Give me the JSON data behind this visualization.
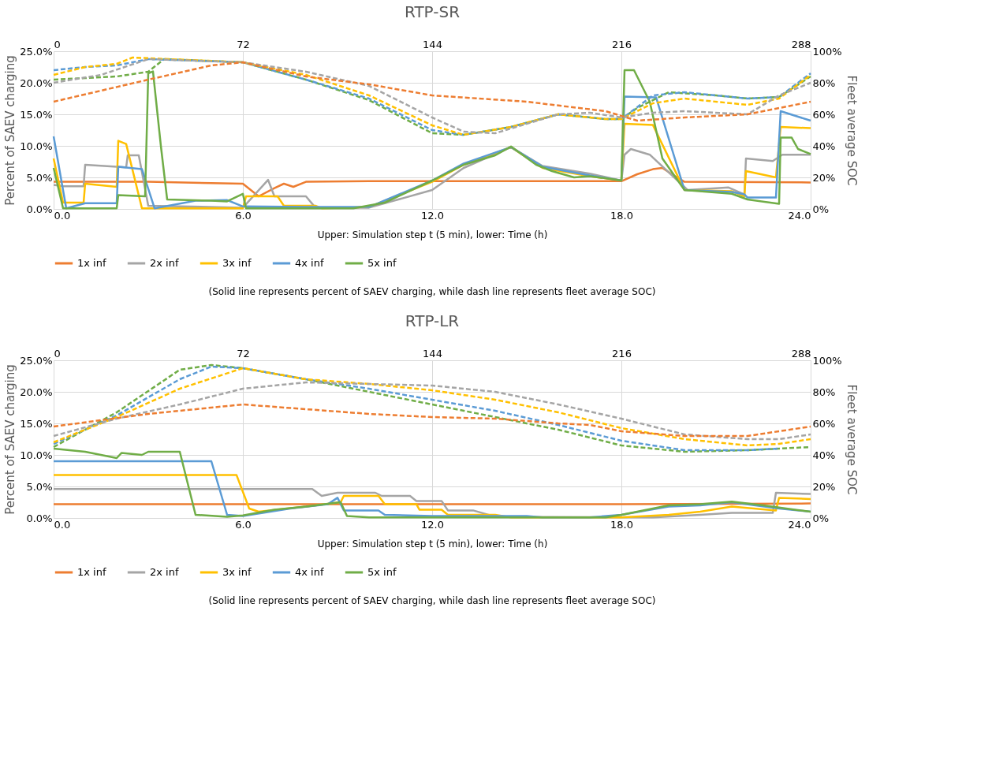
{
  "chart_data": [
    {
      "type": "line",
      "title": "RTP-SR",
      "xlabel": "Upper: Simulation step t (5 min), lower: Time (h)",
      "ylabel": "Percent of SAEV charging",
      "y2label": "Fleet average SOC",
      "annotations": [
        "(Solid line represents percent of SAEV charging, while dash line represents fleet average SOC)"
      ],
      "xlim": [
        0,
        24
      ],
      "xticks": [
        {
          "value": 0,
          "label": "0.0"
        },
        {
          "value": 6,
          "label": "6.0"
        },
        {
          "value": 12,
          "label": "12.0"
        },
        {
          "value": 18,
          "label": "18.0"
        },
        {
          "value": 24,
          "label": "24.0"
        }
      ],
      "x2lim": [
        0,
        288
      ],
      "x2ticks": [
        0,
        72,
        144,
        216,
        288
      ],
      "ylim": [
        0,
        25
      ],
      "yticks": [
        {
          "value": 0,
          "label": "0.0%"
        },
        {
          "value": 5,
          "label": "5.0%"
        },
        {
          "value": 10,
          "label": "10.0%"
        },
        {
          "value": 15,
          "label": "15.0%"
        },
        {
          "value": 20,
          "label": "20.0%"
        },
        {
          "value": 25,
          "label": "25.0%"
        }
      ],
      "y2lim": [
        0,
        100
      ],
      "y2ticks": [
        {
          "value": 0,
          "label": "0%"
        },
        {
          "value": 20,
          "label": "20%"
        },
        {
          "value": 40,
          "label": "40%"
        },
        {
          "value": 60,
          "label": "60%"
        },
        {
          "value": 80,
          "label": "80%"
        },
        {
          "value": 100,
          "label": "100%"
        }
      ],
      "grid": true,
      "legend": "bottom",
      "series": [
        {
          "name": "1x inf",
          "color": "#ed7d31",
          "line_style": "solid",
          "x": [
            0,
            3,
            6,
            6.5,
            7,
            7.3,
            7.6,
            8,
            10,
            18,
            18.5,
            19,
            19.3,
            19.6,
            20,
            24
          ],
          "values": [
            4.3,
            4.3,
            4.0,
            2.0,
            3.3,
            4.0,
            3.5,
            4.3,
            4.4,
            4.4,
            5.5,
            6.3,
            6.5,
            5.5,
            4.3,
            4.2
          ]
        },
        {
          "name": "2x inf",
          "color": "#a5a5a5",
          "line_style": "solid",
          "x": [
            0,
            0.3,
            0.95,
            1.0,
            2.3,
            2.35,
            2.7,
            3.0,
            6,
            6.8,
            7.0,
            8.0,
            8.3,
            10,
            12,
            13,
            14.5,
            15.5,
            17,
            18,
            18.1,
            18.3,
            18.9,
            20.1,
            21.4,
            21.9,
            21.95,
            22.8,
            23.1,
            24
          ],
          "values": [
            3.8,
            3.6,
            3.6,
            7.0,
            6.6,
            8.5,
            8.5,
            0.5,
            0.2,
            4.6,
            2.0,
            2.0,
            0.2,
            0.2,
            3.0,
            6.5,
            9.8,
            6.8,
            5.6,
            4.5,
            8.6,
            9.5,
            8.6,
            3.0,
            3.4,
            2.3,
            8.0,
            7.6,
            8.6,
            8.6
          ]
        },
        {
          "name": "3x inf",
          "color": "#ffc000",
          "line_style": "solid",
          "x": [
            0,
            0.3,
            0.95,
            1.0,
            2.0,
            2.05,
            2.3,
            2.8,
            6,
            6.1,
            7.1,
            7.3,
            8.3,
            8.5,
            10,
            12,
            13,
            14.5,
            15.5,
            17,
            18,
            18.1,
            19.0,
            20,
            21.5,
            21.9,
            21.95,
            22.9,
            23.05,
            24
          ],
          "values": [
            8.0,
            1.0,
            1.0,
            4.0,
            3.5,
            10.8,
            10.3,
            0.1,
            0.1,
            2.0,
            2.0,
            0.5,
            0.5,
            0.1,
            0.3,
            4.3,
            7.0,
            9.8,
            6.5,
            5.2,
            4.5,
            13.5,
            13.3,
            3.0,
            2.8,
            2.0,
            6.0,
            5.0,
            13.0,
            12.8
          ]
        },
        {
          "name": "4x inf",
          "color": "#5b9bd5",
          "line_style": "solid",
          "x": [
            0,
            0.4,
            1.0,
            2.0,
            2.05,
            2.8,
            3.2,
            4.5,
            5.5,
            6,
            8,
            10,
            12,
            13,
            14.5,
            15.5,
            17,
            18,
            18.1,
            19.1,
            20,
            21.5,
            21.9,
            22.0,
            22.9,
            23.05,
            24
          ],
          "values": [
            11.5,
            0.1,
            0.9,
            0.9,
            6.7,
            6.3,
            0.1,
            1.3,
            1.4,
            0.4,
            0.3,
            0.3,
            4.5,
            7.2,
            9.8,
            6.7,
            5.3,
            4.5,
            17.8,
            17.7,
            3.0,
            2.7,
            2.3,
            1.8,
            1.8,
            15.5,
            14.0
          ]
        },
        {
          "name": "5x inf",
          "color": "#70ad47",
          "line_style": "solid",
          "x": [
            0,
            0.3,
            2.0,
            2.05,
            2.9,
            3.0,
            3.15,
            3.4,
            3.6,
            5,
            5.5,
            6.0,
            6.1,
            9.5,
            10.5,
            12,
            13,
            14,
            14.5,
            15.3,
            15.8,
            16.5,
            17,
            18,
            18.1,
            18.4,
            18.9,
            19.3,
            20,
            21.5,
            22,
            23,
            23.05,
            23.4,
            23.6,
            24
          ],
          "values": [
            6.5,
            0.1,
            0.1,
            2.2,
            2.0,
            21.5,
            21.8,
            10.0,
            1.5,
            1.3,
            1.2,
            2.4,
            0.1,
            0.1,
            1.0,
            4.5,
            7.0,
            8.5,
            9.9,
            7.0,
            6.0,
            5.0,
            5.2,
            4.5,
            22.0,
            22.0,
            17.0,
            8.0,
            3.0,
            2.4,
            1.5,
            0.8,
            11.3,
            11.3,
            9.5,
            8.7
          ]
        },
        {
          "axis": "y2",
          "color": "#ed7d31",
          "line_style": "dashed",
          "x": [
            0,
            3,
            5,
            6,
            8,
            10,
            12,
            15,
            17.5,
            18.5,
            20,
            22,
            24
          ],
          "values": [
            68,
            82,
            91,
            93,
            84,
            79,
            72,
            68,
            62,
            56,
            58,
            60,
            68
          ]
        },
        {
          "axis": "y2",
          "color": "#a5a5a5",
          "line_style": "dashed",
          "x": [
            0,
            1.5,
            3,
            6,
            8,
            10,
            12,
            13,
            14,
            16,
            17,
            18,
            19,
            20,
            22,
            23,
            24
          ],
          "values": [
            80,
            85,
            95,
            93,
            87,
            78,
            58,
            49,
            48,
            60,
            61,
            58,
            61,
            62,
            60,
            72,
            80
          ]
        },
        {
          "axis": "y2",
          "color": "#ffc000",
          "line_style": "dashed",
          "x": [
            0,
            1,
            2,
            2.5,
            6,
            8,
            10,
            12,
            13,
            14.5,
            16,
            17.5,
            18,
            19,
            20,
            22,
            23,
            24
          ],
          "values": [
            85,
            90,
            92,
            96,
            93,
            85,
            72,
            53,
            47,
            52,
            60,
            57,
            57,
            67,
            70,
            66,
            70,
            85
          ]
        },
        {
          "axis": "y2",
          "color": "#5b9bd5",
          "line_style": "dashed",
          "x": [
            0,
            1,
            2,
            3,
            6,
            8,
            10,
            12,
            13,
            14.5,
            16,
            17.5,
            18,
            19,
            20,
            22,
            23,
            24
          ],
          "values": [
            88,
            90,
            91,
            95,
            93,
            82,
            70,
            50,
            47,
            52,
            60,
            57,
            57,
            72,
            74,
            70,
            71,
            86
          ]
        },
        {
          "axis": "y2",
          "color": "#70ad47",
          "line_style": "dashed",
          "x": [
            0,
            1,
            2,
            3,
            3.5,
            6,
            8,
            10,
            12,
            13,
            14.5,
            16,
            17.5,
            18,
            18.5,
            19.5,
            21,
            22,
            23,
            24
          ],
          "values": [
            82,
            83,
            84,
            87,
            95,
            93,
            82,
            69,
            48,
            47,
            52,
            60,
            57,
            57,
            64,
            74,
            72,
            70,
            71,
            84
          ]
        }
      ]
    },
    {
      "type": "line",
      "title": "RTP-LR",
      "xlabel": "Upper: Simulation step t (5 min), lower: Time (h)",
      "ylabel": "Percent of SAEV charging",
      "y2label": "Fleet average SOC",
      "annotations": [
        "(Solid line represents percent of SAEV charging, while dash line represents fleet average SOC)"
      ],
      "xlim": [
        0,
        24
      ],
      "xticks": [
        {
          "value": 0,
          "label": "0.0"
        },
        {
          "value": 6,
          "label": "6.0"
        },
        {
          "value": 12,
          "label": "12.0"
        },
        {
          "value": 18,
          "label": "18.0"
        },
        {
          "value": 24,
          "label": "24.0"
        }
      ],
      "x2lim": [
        0,
        288
      ],
      "x2ticks": [
        0,
        72,
        144,
        216,
        288
      ],
      "ylim": [
        0,
        25
      ],
      "yticks": [
        {
          "value": 0,
          "label": "0.0%"
        },
        {
          "value": 5,
          "label": "5.0%"
        },
        {
          "value": 10,
          "label": "10.0%"
        },
        {
          "value": 15,
          "label": "15.0%"
        },
        {
          "value": 20,
          "label": "20.0%"
        },
        {
          "value": 25,
          "label": "25.0%"
        }
      ],
      "y2lim": [
        0,
        100
      ],
      "y2ticks": [
        {
          "value": 0,
          "label": "0%"
        },
        {
          "value": 20,
          "label": "20%"
        },
        {
          "value": 40,
          "label": "40%"
        },
        {
          "value": 60,
          "label": "60%"
        },
        {
          "value": 80,
          "label": "80%"
        },
        {
          "value": 100,
          "label": "100%"
        }
      ],
      "grid": true,
      "legend": "bottom",
      "series": [
        {
          "name": "1x inf",
          "color": "#ed7d31",
          "line_style": "solid",
          "x": [
            0,
            6,
            12,
            18,
            24
          ],
          "values": [
            2.2,
            2.2,
            2.2,
            2.2,
            2.3
          ]
        },
        {
          "name": "2x inf",
          "color": "#a5a5a5",
          "line_style": "solid",
          "x": [
            0,
            8.2,
            8.5,
            9.0,
            10.2,
            10.4,
            11.3,
            11.5,
            12.3,
            12.5,
            13.3,
            14,
            19,
            20.5,
            21.5,
            22.8,
            22.9,
            24
          ],
          "values": [
            4.6,
            4.6,
            3.5,
            4.0,
            4.0,
            3.5,
            3.5,
            2.7,
            2.7,
            1.2,
            1.2,
            0.2,
            0.1,
            0.5,
            0.8,
            0.8,
            4.0,
            3.8
          ]
        },
        {
          "name": "3x inf",
          "color": "#ffc000",
          "line_style": "solid",
          "x": [
            0,
            5.8,
            6.2,
            6.5,
            8,
            9.1,
            9.2,
            10.3,
            10.5,
            11.5,
            11.6,
            12.3,
            12.5,
            14,
            14.5,
            18,
            19.5,
            20.5,
            21.5,
            22.9,
            23.0,
            24
          ],
          "values": [
            6.8,
            6.8,
            1.5,
            1.0,
            1.8,
            2.5,
            3.5,
            3.5,
            2.2,
            2.2,
            1.3,
            1.3,
            0.5,
            0.5,
            0.1,
            0.1,
            0.5,
            1.0,
            1.8,
            1.2,
            3.2,
            3.0
          ]
        },
        {
          "name": "4x inf",
          "color": "#5b9bd5",
          "line_style": "solid",
          "x": [
            0,
            5,
            5.5,
            6,
            7.5,
            8.7,
            9.0,
            9.2,
            10.3,
            10.5,
            12,
            15,
            15.5,
            17,
            18,
            19.5,
            20.5,
            21.5,
            23,
            24
          ],
          "values": [
            9.0,
            9.0,
            0.5,
            0.3,
            1.5,
            2.2,
            3.2,
            1.2,
            1.2,
            0.5,
            0.3,
            0.3,
            0.1,
            0.1,
            0.5,
            1.8,
            2.0,
            2.5,
            1.5,
            1.0
          ]
        },
        {
          "name": "5x inf",
          "color": "#70ad47",
          "line_style": "solid",
          "x": [
            0,
            1,
            2,
            2.15,
            2.8,
            3.0,
            4.0,
            4.5,
            5.5,
            6,
            7,
            8,
            9.1,
            9.3,
            10,
            17.5,
            18,
            19.5,
            20.5,
            21.5,
            22.5,
            23.5,
            24
          ],
          "values": [
            11.0,
            10.5,
            9.5,
            10.3,
            10.0,
            10.5,
            10.5,
            0.5,
            0.2,
            0.4,
            1.3,
            1.8,
            2.5,
            0.3,
            0.1,
            0.1,
            0.5,
            2.0,
            2.2,
            2.6,
            2.0,
            1.3,
            1.0
          ]
        },
        {
          "axis": "y2",
          "color": "#ed7d31",
          "line_style": "dashed",
          "x": [
            0,
            3,
            6,
            8,
            10,
            12,
            14,
            16,
            17,
            18,
            20,
            22,
            24
          ],
          "values": [
            58,
            66,
            72,
            69,
            66,
            64,
            63,
            60,
            59,
            55,
            52,
            52,
            58
          ]
        },
        {
          "axis": "y2",
          "color": "#a5a5a5",
          "line_style": "dashed",
          "x": [
            0,
            2,
            4,
            6,
            8,
            10,
            12,
            14,
            16,
            18,
            20,
            22,
            23,
            24
          ],
          "values": [
            52,
            63,
            72,
            82,
            86,
            85,
            84,
            80,
            72,
            63,
            53,
            50,
            50,
            53
          ]
        },
        {
          "axis": "y2",
          "color": "#ffc000",
          "line_style": "dashed",
          "x": [
            0,
            2,
            4,
            6,
            8,
            10,
            12,
            14,
            16,
            18,
            20,
            22,
            23,
            24
          ],
          "values": [
            48,
            64,
            82,
            95,
            88,
            85,
            81,
            75,
            67,
            57,
            50,
            46,
            47,
            50
          ]
        },
        {
          "axis": "y2",
          "color": "#5b9bd5",
          "line_style": "dashed",
          "x": [
            0,
            2,
            4,
            5,
            6,
            8,
            10,
            12,
            14,
            16,
            18,
            20,
            22,
            23
          ],
          "values": [
            47,
            65,
            88,
            96,
            95,
            88,
            82,
            75,
            68,
            59,
            49,
            43,
            43,
            44
          ]
        },
        {
          "axis": "y2",
          "color": "#70ad47",
          "line_style": "dashed",
          "x": [
            0,
            2,
            4,
            5,
            6,
            8,
            10,
            12,
            14,
            16,
            18,
            20,
            22,
            24
          ],
          "values": [
            45,
            67,
            94,
            97,
            95,
            88,
            80,
            72,
            64,
            56,
            46,
            42,
            43,
            45
          ]
        }
      ]
    }
  ]
}
